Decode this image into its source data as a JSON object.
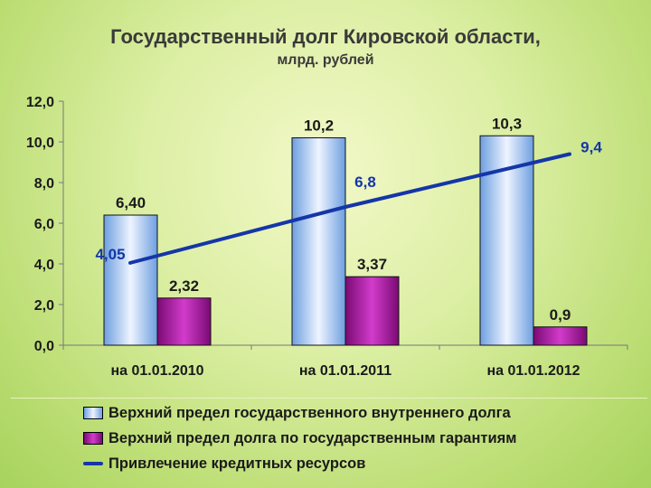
{
  "chart_data": {
    "type": "bar",
    "title": "Государственный долг Кировской области,",
    "subtitle": "млрд. рублей",
    "categories": [
      "на 01.01.2010",
      "на 01.01.2011",
      "на 01.01.2012"
    ],
    "ylim": [
      0,
      12
    ],
    "yticks": [
      "0,0",
      "2,0",
      "4,0",
      "6,0",
      "8,0",
      "10,0",
      "12,0"
    ],
    "series": [
      {
        "name": "Верхний предел государственного внутреннего долга",
        "type": "bar",
        "values": [
          6.4,
          10.2,
          10.3
        ],
        "labels": [
          "6,40",
          "10,2",
          "10,3"
        ],
        "color": "#a9c8f2"
      },
      {
        "name": "Верхний предел долга по государственным гарантиям",
        "type": "bar",
        "values": [
          2.32,
          3.37,
          0.9
        ],
        "labels": [
          "2,32",
          "3,37",
          "0,9"
        ],
        "color": "#a0109a"
      },
      {
        "name": "Привлечение кредитных ресурсов",
        "type": "line",
        "values": [
          4.05,
          6.8,
          9.4
        ],
        "labels": [
          "4,05",
          "6,8",
          "9,4"
        ],
        "color": "#1436a8"
      }
    ],
    "grid": false,
    "legend": "bottom"
  }
}
